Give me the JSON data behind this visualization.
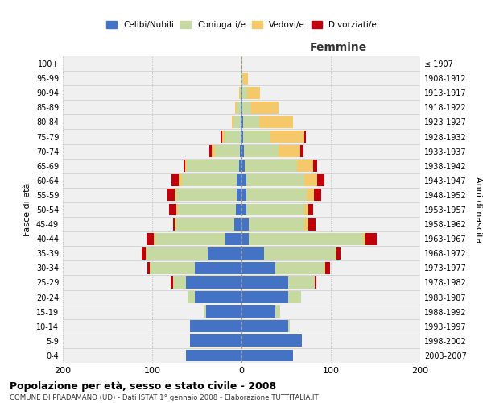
{
  "age_groups": [
    "0-4",
    "5-9",
    "10-14",
    "15-19",
    "20-24",
    "25-29",
    "30-34",
    "35-39",
    "40-44",
    "45-49",
    "50-54",
    "55-59",
    "60-64",
    "65-69",
    "70-74",
    "75-79",
    "80-84",
    "85-89",
    "90-94",
    "95-99",
    "100+"
  ],
  "birth_years": [
    "2003-2007",
    "1998-2002",
    "1993-1997",
    "1988-1992",
    "1983-1987",
    "1978-1982",
    "1973-1977",
    "1968-1972",
    "1963-1967",
    "1958-1962",
    "1953-1957",
    "1948-1952",
    "1943-1947",
    "1938-1942",
    "1933-1937",
    "1928-1932",
    "1923-1927",
    "1918-1922",
    "1913-1917",
    "1908-1912",
    "≤ 1907"
  ],
  "male": {
    "celibi": [
      62,
      58,
      58,
      40,
      52,
      62,
      52,
      38,
      18,
      8,
      6,
      5,
      5,
      3,
      2,
      1,
      1,
      1,
      0,
      0,
      0
    ],
    "coniugati": [
      0,
      0,
      0,
      2,
      8,
      15,
      50,
      68,
      78,
      65,
      65,
      68,
      62,
      58,
      28,
      18,
      8,
      4,
      2,
      1,
      0
    ],
    "vedovi": [
      0,
      0,
      0,
      0,
      0,
      0,
      1,
      1,
      2,
      2,
      2,
      2,
      3,
      2,
      3,
      3,
      2,
      2,
      1,
      0,
      0
    ],
    "divorziati": [
      0,
      0,
      0,
      0,
      0,
      2,
      2,
      5,
      8,
      2,
      8,
      8,
      8,
      2,
      3,
      1,
      0,
      0,
      0,
      0,
      0
    ]
  },
  "female": {
    "nubili": [
      58,
      68,
      52,
      38,
      52,
      52,
      38,
      25,
      8,
      8,
      5,
      5,
      5,
      4,
      3,
      2,
      2,
      1,
      1,
      0,
      0
    ],
    "coniugate": [
      0,
      0,
      2,
      5,
      15,
      30,
      55,
      80,
      128,
      62,
      65,
      68,
      65,
      58,
      38,
      30,
      18,
      10,
      5,
      2,
      0
    ],
    "vedove": [
      0,
      0,
      0,
      0,
      0,
      0,
      1,
      1,
      3,
      5,
      5,
      8,
      15,
      18,
      25,
      38,
      38,
      30,
      15,
      5,
      1
    ],
    "divorziate": [
      0,
      0,
      0,
      0,
      0,
      2,
      5,
      5,
      12,
      8,
      5,
      8,
      8,
      5,
      3,
      2,
      0,
      0,
      0,
      0,
      0
    ]
  },
  "colors": {
    "celibi_nubili": "#4472c4",
    "coniugati": "#c5d9a0",
    "vedovi": "#f5c96a",
    "divorziati": "#c0000a"
  },
  "title": "Popolazione per età, sesso e stato civile - 2008",
  "subtitle": "COMUNE DI PRADAMANO (UD) - Dati ISTAT 1° gennaio 2008 - Elaborazione TUTTITALIA.IT",
  "xlabel_right": "Femmine",
  "ylabel_left": "Fasce di età",
  "ylabel_right": "Anni di nascita",
  "xlim": 200,
  "legend_labels": [
    "Celibi/Nubili",
    "Coniugati/e",
    "Vedovi/e",
    "Divorziati/e"
  ],
  "bg_color": "#ffffff",
  "plot_bg": "#f0f0f0"
}
